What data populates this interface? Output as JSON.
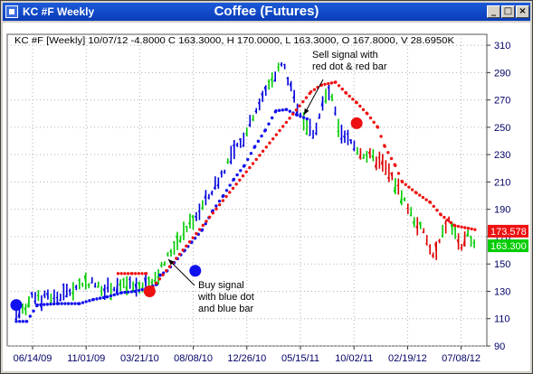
{
  "window": {
    "title": "KC #F Weekly",
    "chart_title": "Coffee (Futures)",
    "buttons": {
      "minimize": "_",
      "maximize": "□",
      "close": "×"
    }
  },
  "colors": {
    "title_bar": "#0a3cb8",
    "up_bar": "#0000dd",
    "down_bar": "#dd0000",
    "neutral_bar": "#00cc00",
    "buy_dot": "#1010ee",
    "sell_dot": "#ee1111",
    "last_close_box": "#00cc00",
    "trail_box": "#ee1111"
  },
  "chart_data": {
    "type": "line",
    "header": "KC #F [Weekly] 10/07/12  -4.8000 C 163.3000, H 170.0000, L 163.3000, O 167.8000, V 28.6950K",
    "x_tick_labels": [
      "06/14/09",
      "11/01/09",
      "03/21/10",
      "08/08/10",
      "12/26/10",
      "05/15/11",
      "10/02/11",
      "02/19/12",
      "07/08/12"
    ],
    "y_ticks": [
      310,
      290,
      270,
      250,
      230,
      210,
      190,
      170,
      150,
      130,
      110,
      90
    ],
    "ylim": [
      90,
      318
    ],
    "price_series": {
      "name": "Price (weekly)",
      "approx_path": [
        [
          0,
          113
        ],
        [
          3,
          116
        ],
        [
          6,
          120
        ],
        [
          10,
          126
        ],
        [
          14,
          123
        ],
        [
          18,
          127
        ],
        [
          22,
          125
        ],
        [
          27,
          128
        ],
        [
          32,
          131
        ],
        [
          37,
          136
        ],
        [
          42,
          137
        ],
        [
          47,
          133
        ],
        [
          52,
          132
        ],
        [
          57,
          133
        ],
        [
          62,
          134
        ],
        [
          68,
          133
        ],
        [
          74,
          137
        ],
        [
          80,
          141
        ],
        [
          86,
          154
        ],
        [
          92,
          168
        ],
        [
          98,
          178
        ],
        [
          104,
          188
        ],
        [
          110,
          200
        ],
        [
          116,
          213
        ],
        [
          122,
          228
        ],
        [
          128,
          238
        ],
        [
          134,
          257
        ],
        [
          140,
          270
        ],
        [
          146,
          287
        ],
        [
          152,
          297
        ],
        [
          158,
          272
        ],
        [
          163,
          258
        ],
        [
          166,
          250
        ],
        [
          170,
          246
        ],
        [
          175,
          268
        ],
        [
          178,
          276
        ],
        [
          181,
          266
        ],
        [
          184,
          244
        ],
        [
          190,
          240
        ],
        [
          196,
          232
        ],
        [
          202,
          228
        ],
        [
          208,
          224
        ],
        [
          214,
          213
        ],
        [
          220,
          200
        ],
        [
          226,
          184
        ],
        [
          232,
          173
        ],
        [
          236,
          160
        ],
        [
          238,
          154
        ],
        [
          242,
          168
        ],
        [
          246,
          183
        ],
        [
          250,
          172
        ],
        [
          254,
          162
        ],
        [
          258,
          171
        ],
        [
          262,
          166
        ]
      ]
    },
    "stop_series": [
      {
        "name": "Long stop (blue dots)",
        "points": [
          [
            0,
            108
          ],
          [
            6,
            108
          ],
          [
            12,
            120
          ],
          [
            24,
            121
          ],
          [
            36,
            121
          ],
          [
            44,
            124
          ],
          [
            52,
            126
          ],
          [
            60,
            129
          ],
          [
            68,
            130
          ],
          [
            74,
            132
          ],
          [
            80,
            135
          ],
          [
            82,
            142
          ],
          [
            86,
            145
          ],
          [
            90,
            151
          ],
          [
            96,
            160
          ],
          [
            100,
            166
          ],
          [
            106,
            175
          ],
          [
            112,
            189
          ],
          [
            118,
            200
          ],
          [
            124,
            212
          ],
          [
            130,
            222
          ],
          [
            136,
            236
          ],
          [
            142,
            248
          ],
          [
            148,
            262
          ],
          [
            154,
            263
          ],
          [
            160,
            259
          ],
          [
            166,
            256
          ]
        ]
      },
      {
        "name": "Short stop (red dots)",
        "points": [
          [
            58,
            143
          ],
          [
            66,
            143
          ],
          [
            74,
            143
          ],
          [
            76,
            130
          ],
          [
            168,
            276
          ],
          [
            174,
            281
          ],
          [
            182,
            283
          ],
          [
            188,
            275
          ],
          [
            194,
            268
          ],
          [
            200,
            260
          ],
          [
            206,
            250
          ],
          [
            210,
            236
          ],
          [
            216,
            222
          ],
          [
            220,
            210
          ],
          [
            228,
            202
          ],
          [
            236,
            195
          ],
          [
            242,
            186
          ],
          [
            250,
            178
          ],
          [
            262,
            175
          ]
        ]
      }
    ],
    "signals": [
      {
        "type": "buy",
        "x": 0,
        "y": 120
      },
      {
        "type": "sell",
        "x": 76,
        "y": 130
      },
      {
        "type": "buy",
        "x": 102,
        "y": 145
      },
      {
        "type": "sell",
        "x": 194,
        "y": 253
      }
    ],
    "annotations": [
      {
        "lines": [
          "Sell signal with",
          "red dot & red bar"
        ]
      },
      {
        "lines": [
          "Buy signal",
          "with blue dot",
          "and blue bar"
        ]
      }
    ],
    "price_labels": [
      {
        "value": "173.578"
      },
      {
        "value": "163.300"
      }
    ],
    "grid": true
  }
}
